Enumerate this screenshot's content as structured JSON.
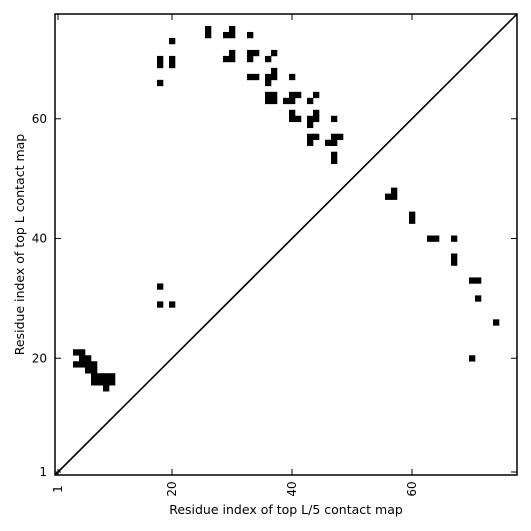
{
  "chart_data": {
    "type": "heatmap",
    "xlabel": "Residue index of top L/5 contact map",
    "ylabel": "Residue index of top L contact map",
    "xlim": [
      0.5,
      77.5
    ],
    "ylim": [
      0.5,
      77.5
    ],
    "x_ticks": [
      {
        "value": 1,
        "label": "1"
      },
      {
        "value": 20,
        "label": "20"
      },
      {
        "value": 40,
        "label": "40"
      },
      {
        "value": 60,
        "label": "60"
      }
    ],
    "y_ticks": [
      {
        "value": 1,
        "label": "1"
      },
      {
        "value": 20,
        "label": "20"
      },
      {
        "value": 40,
        "label": "40"
      },
      {
        "value": 60,
        "label": "60"
      }
    ],
    "diagonal": true,
    "color": "#000000",
    "upper_contacts": [
      [
        18,
        69
      ],
      [
        18,
        70
      ],
      [
        18,
        66
      ],
      [
        20,
        73
      ],
      [
        20,
        69
      ],
      [
        20,
        70
      ],
      [
        26,
        74
      ],
      [
        26,
        75
      ],
      [
        29,
        74
      ],
      [
        30,
        74
      ],
      [
        30,
        75
      ],
      [
        29,
        70
      ],
      [
        30,
        70
      ],
      [
        30,
        71
      ],
      [
        33,
        74
      ],
      [
        33,
        70
      ],
      [
        33,
        71
      ],
      [
        34,
        71
      ],
      [
        33,
        67
      ],
      [
        34,
        67
      ],
      [
        36,
        70
      ],
      [
        37,
        71
      ],
      [
        36,
        66
      ],
      [
        36,
        67
      ],
      [
        37,
        67
      ],
      [
        37,
        68
      ],
      [
        36,
        63
      ],
      [
        36,
        64
      ],
      [
        37,
        63
      ],
      [
        37,
        64
      ],
      [
        40,
        67
      ],
      [
        39,
        63
      ],
      [
        40,
        63
      ],
      [
        40,
        64
      ],
      [
        41,
        64
      ],
      [
        40,
        60
      ],
      [
        40,
        61
      ],
      [
        41,
        60
      ],
      [
        43,
        63
      ],
      [
        44,
        64
      ],
      [
        43,
        59
      ],
      [
        43,
        60
      ],
      [
        44,
        60
      ],
      [
        44,
        61
      ],
      [
        43,
        56
      ],
      [
        43,
        57
      ],
      [
        44,
        57
      ],
      [
        46,
        56
      ],
      [
        47,
        56
      ],
      [
        47,
        57
      ],
      [
        48,
        57
      ],
      [
        47,
        60
      ],
      [
        47,
        53
      ],
      [
        47,
        54
      ]
    ],
    "lower_contacts": [
      [
        4,
        21
      ],
      [
        5,
        21
      ],
      [
        4,
        19
      ],
      [
        5,
        19
      ],
      [
        5,
        20
      ],
      [
        6,
        19
      ],
      [
        6,
        20
      ],
      [
        6,
        18
      ],
      [
        7,
        18
      ],
      [
        7,
        19
      ],
      [
        7,
        16
      ],
      [
        7,
        17
      ],
      [
        8,
        16
      ],
      [
        8,
        17
      ],
      [
        9,
        16
      ],
      [
        9,
        17
      ],
      [
        10,
        16
      ],
      [
        10,
        17
      ],
      [
        9,
        15
      ],
      [
        18,
        32
      ],
      [
        18,
        29
      ],
      [
        20,
        29
      ],
      [
        56,
        47
      ],
      [
        57,
        47
      ],
      [
        57,
        48
      ],
      [
        60,
        43
      ],
      [
        60,
        44
      ],
      [
        63,
        40
      ],
      [
        64,
        40
      ],
      [
        67,
        40
      ],
      [
        67,
        36
      ],
      [
        67,
        37
      ],
      [
        70,
        33
      ],
      [
        71,
        33
      ],
      [
        71,
        30
      ],
      [
        74,
        26
      ],
      [
        70,
        20
      ]
    ]
  }
}
